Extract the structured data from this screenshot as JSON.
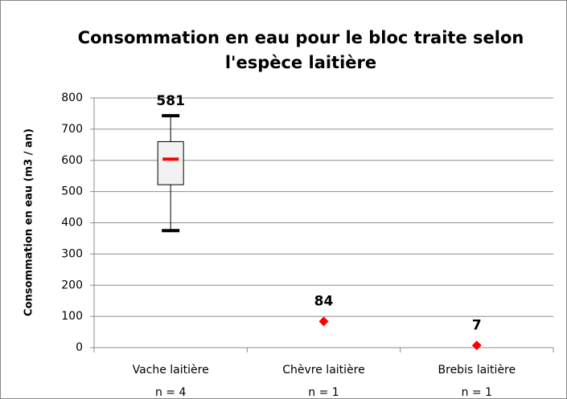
{
  "chart_data": {
    "type": "box",
    "title": [
      "Consommation en eau pour le bloc traite selon",
      "l'espèce laitière"
    ],
    "ylabel": "Consommation en eau (m3 / an)",
    "categories": [
      "Vache laitière",
      "Chèvre laitière",
      "Brebis laitière"
    ],
    "n_labels": [
      "n = 4",
      "n = 1",
      "n = 1"
    ],
    "ylim": [
      0,
      800
    ],
    "yticks": [
      0,
      100,
      200,
      300,
      400,
      500,
      600,
      700,
      800
    ],
    "grid": true,
    "values": [
      {
        "min": 375,
        "q1": 522,
        "median": 604,
        "q3": 660,
        "max": 743,
        "label": 581
      },
      {
        "value": 84
      },
      {
        "value": 7
      }
    ],
    "box_color": "#f2f2f2",
    "median_color": "#ff0000",
    "point_color": "#ff0000"
  }
}
